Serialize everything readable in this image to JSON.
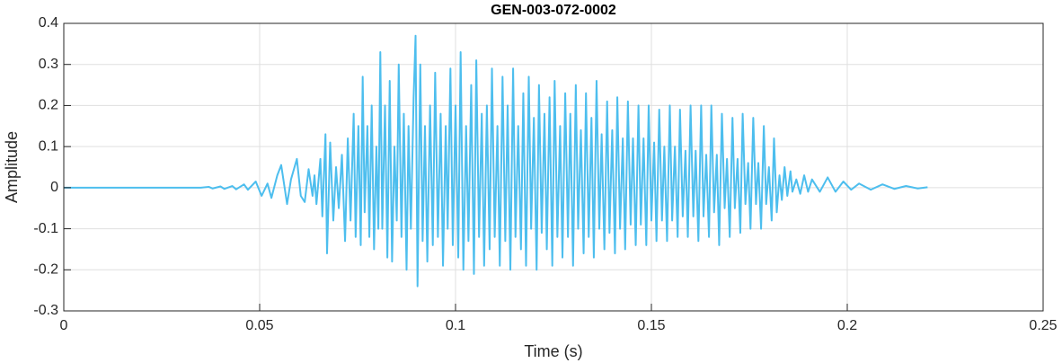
{
  "chart_data": {
    "type": "line",
    "title": "GEN-003-072-0002",
    "x_label": "Time (s)",
    "y_label": "Amplitude",
    "xlim": [
      0,
      0.25
    ],
    "xticks": [
      0,
      0.05,
      0.1,
      0.15,
      0.2,
      0.25
    ],
    "ylim": [
      -0.3,
      0.4
    ],
    "yticks": [
      -0.3,
      -0.2,
      -0.1,
      0,
      0.1,
      0.2,
      0.3,
      0.4
    ],
    "grid": true,
    "x": [
      0,
      0.01,
      0.02,
      0.03,
      0.035,
      0.037,
      0.038,
      0.04,
      0.041,
      0.043,
      0.044,
      0.046,
      0.047,
      0.049,
      0.0505,
      0.052,
      0.053,
      0.0545,
      0.0555,
      0.057,
      0.058,
      0.0595,
      0.0605,
      0.0615,
      0.0625,
      0.0635,
      0.064,
      0.0645,
      0.0655,
      0.066,
      0.0668,
      0.0672,
      0.068,
      0.0688,
      0.0695,
      0.0702,
      0.071,
      0.0718,
      0.0725,
      0.0732,
      0.074,
      0.0745,
      0.0752,
      0.0758,
      0.0763,
      0.0768,
      0.0775,
      0.078,
      0.0786,
      0.0792,
      0.0798,
      0.0803,
      0.0808,
      0.0813,
      0.082,
      0.0826,
      0.0832,
      0.0838,
      0.0844,
      0.085,
      0.0855,
      0.0862,
      0.0868,
      0.0875,
      0.088,
      0.0886,
      0.0893,
      0.0898,
      0.0903,
      0.091,
      0.0916,
      0.0922,
      0.0928,
      0.0935,
      0.0942,
      0.0948,
      0.0955,
      0.0962,
      0.0968,
      0.0975,
      0.098,
      0.0987,
      0.0993,
      0.1,
      0.1007,
      0.1013,
      0.102,
      0.1027,
      0.1033,
      0.104,
      0.1047,
      0.1053,
      0.106,
      0.1067,
      0.1073,
      0.108,
      0.1087,
      0.1093,
      0.11,
      0.1107,
      0.1113,
      0.112,
      0.1127,
      0.1133,
      0.114,
      0.1147,
      0.1153,
      0.116,
      0.1167,
      0.1173,
      0.118,
      0.1187,
      0.1193,
      0.12,
      0.1207,
      0.1213,
      0.122,
      0.1227,
      0.1233,
      0.124,
      0.1247,
      0.1253,
      0.126,
      0.1267,
      0.1273,
      0.128,
      0.1287,
      0.1293,
      0.13,
      0.1307,
      0.1313,
      0.132,
      0.1327,
      0.1333,
      0.134,
      0.1347,
      0.1353,
      0.136,
      0.1367,
      0.1373,
      0.138,
      0.1387,
      0.1393,
      0.14,
      0.1407,
      0.1413,
      0.142,
      0.1427,
      0.1433,
      0.144,
      0.1447,
      0.1453,
      0.146,
      0.1467,
      0.1473,
      0.148,
      0.1487,
      0.1493,
      0.15,
      0.1507,
      0.1513,
      0.152,
      0.1527,
      0.1533,
      0.154,
      0.1547,
      0.1553,
      0.156,
      0.1567,
      0.1573,
      0.158,
      0.1587,
      0.1593,
      0.16,
      0.1607,
      0.1613,
      0.162,
      0.1627,
      0.1633,
      0.164,
      0.1647,
      0.1653,
      0.166,
      0.1667,
      0.1673,
      0.168,
      0.1687,
      0.1693,
      0.17,
      0.1707,
      0.1713,
      0.172,
      0.1727,
      0.1733,
      0.174,
      0.1747,
      0.1753,
      0.176,
      0.1767,
      0.1773,
      0.178,
      0.1787,
      0.1793,
      0.18,
      0.1807,
      0.1813,
      0.182,
      0.1827,
      0.1833,
      0.184,
      0.1847,
      0.1855,
      0.186,
      0.187,
      0.188,
      0.189,
      0.19,
      0.191,
      0.193,
      0.195,
      0.197,
      0.199,
      0.201,
      0.203,
      0.206,
      0.209,
      0.212,
      0.215,
      0.218,
      0.2205
    ],
    "series": [
      {
        "color": "#4dbeee",
        "values": [
          0,
          0,
          0,
          0,
          0,
          0.002,
          -0.002,
          0.003,
          -0.003,
          0.004,
          -0.004,
          0.008,
          -0.005,
          0.015,
          -0.02,
          0.01,
          -0.025,
          0.03,
          0.055,
          -0.04,
          0.02,
          0.07,
          -0.02,
          -0.035,
          0.045,
          -0.02,
          0.03,
          -0.04,
          0.07,
          -0.07,
          0.13,
          -0.16,
          0.11,
          -0.08,
          0.05,
          -0.05,
          0.08,
          -0.13,
          0.12,
          -0.08,
          0.18,
          -0.12,
          0.15,
          -0.14,
          0.27,
          -0.06,
          0.15,
          -0.12,
          0.2,
          -0.15,
          0.1,
          -0.1,
          0.33,
          -0.1,
          0.2,
          -0.17,
          0.26,
          -0.18,
          0.1,
          -0.08,
          0.3,
          -0.12,
          0.18,
          -0.2,
          0.15,
          -0.1,
          0.22,
          0.37,
          -0.24,
          0.3,
          -0.13,
          0.15,
          -0.18,
          0.2,
          -0.14,
          0.28,
          -0.12,
          0.18,
          -0.19,
          0.15,
          -0.1,
          0.29,
          -0.14,
          0.2,
          -0.17,
          0.33,
          -0.2,
          0.15,
          -0.13,
          0.25,
          -0.21,
          0.31,
          -0.12,
          0.18,
          -0.19,
          0.2,
          -0.15,
          0.29,
          -0.12,
          0.15,
          -0.19,
          0.27,
          -0.13,
          0.2,
          -0.2,
          0.29,
          -0.12,
          0.15,
          -0.15,
          0.23,
          -0.19,
          0.27,
          -0.1,
          0.17,
          -0.2,
          0.25,
          -0.11,
          0.18,
          -0.15,
          0.22,
          -0.19,
          0.26,
          -0.12,
          0.15,
          -0.17,
          0.23,
          -0.12,
          0.18,
          -0.19,
          0.25,
          -0.1,
          0.14,
          -0.16,
          0.23,
          -0.12,
          0.17,
          -0.17,
          0.26,
          -0.1,
          0.13,
          -0.15,
          0.21,
          -0.11,
          0.14,
          -0.16,
          0.22,
          -0.1,
          0.12,
          -0.15,
          0.21,
          -0.09,
          0.12,
          -0.14,
          0.2,
          -0.09,
          0.12,
          -0.14,
          0.2,
          -0.08,
          0.11,
          -0.13,
          0.19,
          -0.08,
          0.1,
          -0.13,
          0.2,
          -0.08,
          0.1,
          -0.12,
          0.19,
          -0.07,
          0.09,
          -0.12,
          0.2,
          -0.07,
          0.09,
          -0.13,
          0.2,
          -0.07,
          0.08,
          -0.12,
          0.2,
          -0.06,
          0.08,
          -0.14,
          0.18,
          -0.05,
          0.07,
          -0.12,
          0.17,
          -0.05,
          0.07,
          -0.11,
          0.18,
          -0.04,
          0.06,
          -0.1,
          0.17,
          -0.04,
          0.06,
          -0.1,
          0.15,
          -0.04,
          0.05,
          -0.08,
          0.12,
          -0.06,
          0.03,
          -0.03,
          0.05,
          -0.02,
          0.04,
          -0.01,
          0.02,
          -0.015,
          0.03,
          -0.01,
          0.02,
          -0.01,
          0.025,
          -0.01,
          0.015,
          -0.005,
          0.01,
          -0.005,
          0.008,
          -0.003,
          0.004,
          -0.002,
          0.001
        ]
      }
    ]
  }
}
